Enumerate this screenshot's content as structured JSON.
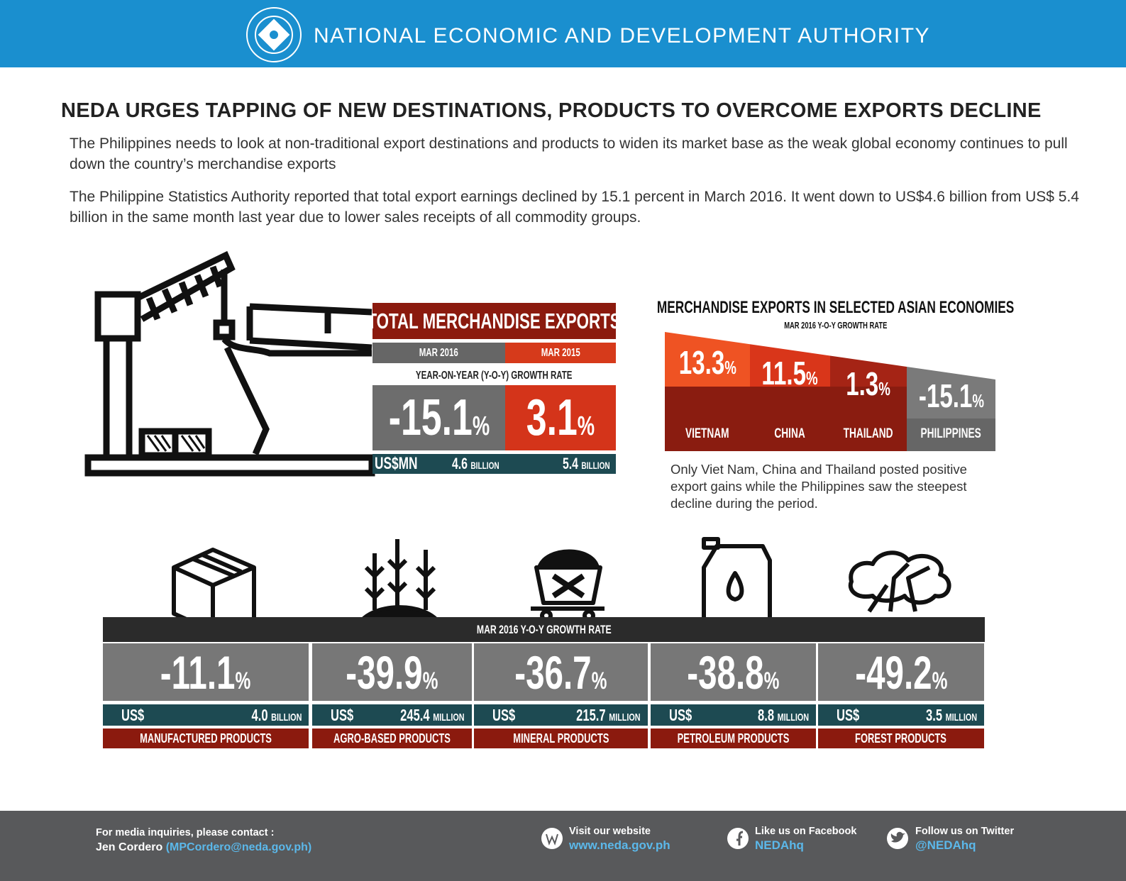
{
  "header": {
    "title": "NATIONAL ECONOMIC AND DEVELOPMENT AUTHORITY"
  },
  "headline": "NEDA URGES TAPPING OF NEW DESTINATIONS, PRODUCTS TO OVERCOME EXPORTS DECLINE",
  "paragraphs": [
    "The Philippines needs to look at non-traditional export destinations and products to widen its market base as the weak global economy continues to pull down the country’s merchandise exports",
    "The Philippine Statistics Authority reported that total export earnings declined by 15.1 percent in March 2016. It went down to US$4.6 billion from US$ 5.4 billion in the same month last year due to lower sales receipts of all commodity groups."
  ],
  "total_exports": {
    "title": "TOTAL MERCHANDISE EXPORTS",
    "subtitle": "YEAR-ON-YEAR (Y-O-Y) GROWTH RATE",
    "currency": "US$MN",
    "columns": [
      {
        "period": "MAR 2016",
        "rate": "-15.1",
        "unit": "%",
        "amount": "4.6",
        "scale": "BILLION"
      },
      {
        "period": "MAR 2015",
        "rate": "3.1",
        "unit": "%",
        "amount": "5.4",
        "scale": "BILLION"
      }
    ]
  },
  "asian_economies": {
    "title": "MERCHANDISE EXPORTS IN SELECTED ASIAN ECONOMIES",
    "subtitle": "MAR 2016 Y-O-Y GROWTH RATE",
    "economies": [
      {
        "name": "VIETNAM",
        "rate": "13.3",
        "unit": "%"
      },
      {
        "name": "CHINA",
        "rate": "11.5",
        "unit": "%"
      },
      {
        "name": "THAILAND",
        "rate": "1.3",
        "unit": "%"
      },
      {
        "name": "PHILIPPINES",
        "rate": "-15.1",
        "unit": "%"
      }
    ],
    "note": "Only Viet Nam, China and Thailand posted positive export gains while the Philippines saw the steepest decline during the period."
  },
  "products": {
    "label": "MAR 2016 Y-O-Y GROWTH RATE",
    "items": [
      {
        "name": "MANUFACTURED PRODUCTS",
        "rate": "-11.1",
        "unit": "%",
        "currency": "US$",
        "amount": "4.0",
        "scale": "BILLION"
      },
      {
        "name": "AGRO-BASED PRODUCTS",
        "rate": "-39.9",
        "unit": "%",
        "currency": "US$",
        "amount": "245.4",
        "scale": "MILLION"
      },
      {
        "name": "MINERAL PRODUCTS",
        "rate": "-36.7",
        "unit": "%",
        "currency": "US$",
        "amount": "215.7",
        "scale": "MILLION"
      },
      {
        "name": "PETROLEUM PRODUCTS",
        "rate": "-38.8",
        "unit": "%",
        "currency": "US$",
        "amount": "8.8",
        "scale": "MILLION"
      },
      {
        "name": "FOREST PRODUCTS",
        "rate": "-49.2",
        "unit": "%",
        "currency": "US$",
        "amount": "3.5",
        "scale": "MILLION"
      }
    ]
  },
  "footer": {
    "contact_label": "For media inquiries, please contact :",
    "contact_name": "Jen Cordero",
    "contact_email": "(MPCordero@neda.gov.ph)",
    "links": [
      {
        "label": "Visit our website",
        "value": "www.neda.gov.ph"
      },
      {
        "label": "Like us on Facebook",
        "value": "NEDAhq"
      },
      {
        "label": "Follow us on Twitter",
        "value": "@NEDAhq"
      }
    ]
  }
}
